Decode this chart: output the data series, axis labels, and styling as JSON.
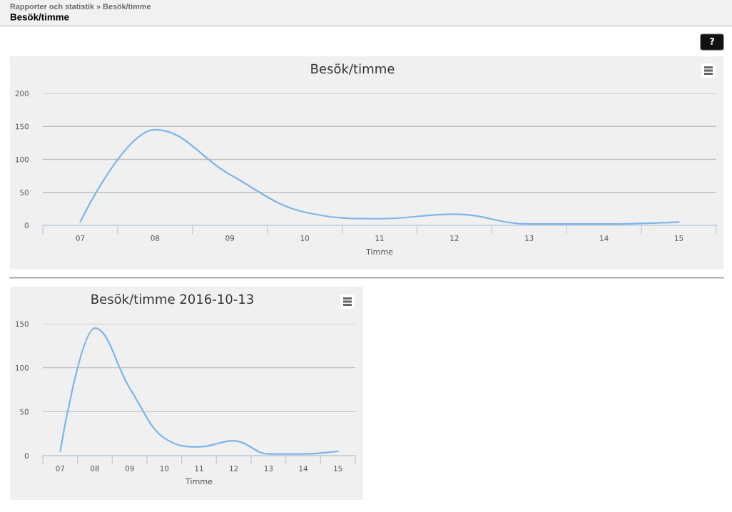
{
  "chart_data": [
    {
      "type": "line",
      "title": "Besök/timme",
      "xlabel": "Timme",
      "categories": [
        "07",
        "08",
        "09",
        "10",
        "11",
        "12",
        "13",
        "14",
        "15"
      ],
      "values": [
        5,
        145,
        77,
        20,
        10,
        17,
        2,
        2,
        5
      ],
      "color": "#7cb5ec",
      "ylim": [
        0,
        200
      ],
      "yticks": [
        0,
        50,
        100,
        150,
        200
      ],
      "grid": "y",
      "annotations": [
        "Rapporter och statistik » Besök/timme",
        "Besök/timme",
        "?"
      ]
    },
    {
      "type": "line",
      "title": "Besök/timme 2016-10-13",
      "xlabel": "Timme",
      "categories": [
        "07",
        "08",
        "09",
        "10",
        "11",
        "12",
        "13",
        "14",
        "15"
      ],
      "values": [
        5,
        145,
        77,
        20,
        10,
        17,
        2,
        2,
        5
      ],
      "color": "#7cb5ec",
      "ylim": [
        0,
        150
      ],
      "yticks": [
        0,
        50,
        100,
        150
      ],
      "grid": "y"
    }
  ]
}
